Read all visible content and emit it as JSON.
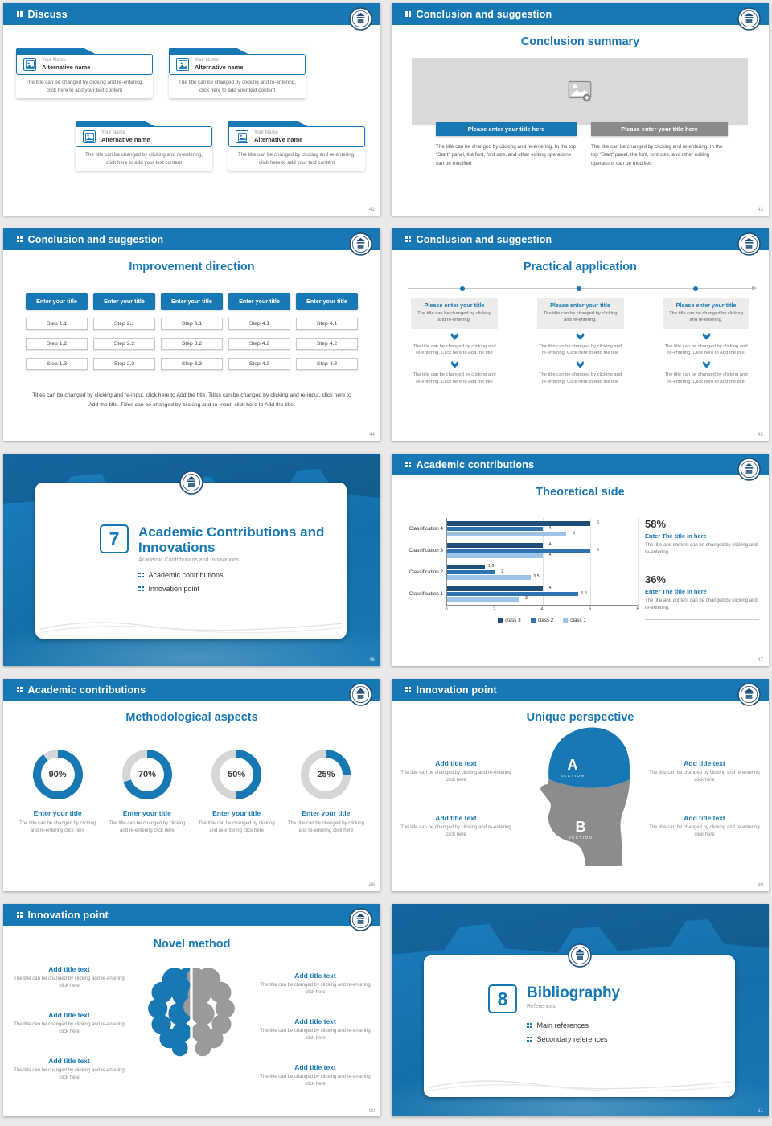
{
  "theme": {
    "accent": "#1878B4",
    "navy": "#1F4E79",
    "gray_button": "#8A8A8A",
    "donut_rest": "#D6D6D6"
  },
  "slide42": {
    "header": "Discuss",
    "page": "42",
    "cards": [
      {
        "name": "Your Name",
        "alt": "Alternative name",
        "body": "The title can be changed by clicking and re-entering, click here to add your text content"
      },
      {
        "name": "Your Name",
        "alt": "Alternative name",
        "body": "The title can be changed by clicking and re-entering, click here to add your text content"
      },
      {
        "name": "Your Name",
        "alt": "Alternative name",
        "body": "The title can be changed by clicking and re-entering, click here to add your text content"
      },
      {
        "name": "Your Name",
        "alt": "Alternative name",
        "body": "The title can be changed by clicking and re-entering, click here to add your text content"
      }
    ]
  },
  "slide43": {
    "header": "Conclusion and suggestion",
    "page": "43",
    "title": "Conclusion summary",
    "left_button": "Please enter your title here",
    "right_button": "Please enter your title here",
    "left_body": "The title can be changed by clicking and re-entering. In the top \"Start\" panel, the font, font size, and other editing operations can be modified",
    "right_body": "The title can be changed by clicking and re-entering. In the top \"Start\" panel, the font, font size, and other editing operations can be modified"
  },
  "slide44": {
    "header": "Conclusion and suggestion",
    "page": "44",
    "title": "Improvement direction",
    "columns": [
      {
        "button": "Enter your title",
        "steps": [
          "Step 1.1",
          "Step 1.2",
          "Step 1.3"
        ]
      },
      {
        "button": "Enter your title",
        "steps": [
          "Step 2.1",
          "Step 2.2",
          "Step 2.3"
        ]
      },
      {
        "button": "Enter your title",
        "steps": [
          "Step 3.1",
          "Step 3.2",
          "Step 3.3"
        ]
      },
      {
        "button": "Enter your title",
        "steps": [
          "Step 4.1",
          "Step 4.2",
          "Step 4.3"
        ]
      },
      {
        "button": "Enter your title",
        "steps": [
          "Step 4.1",
          "Step 4.2",
          "Step 4.3"
        ]
      }
    ],
    "footer": "Titles can be changed by clicking and re-input, click here to Add the title. Titles can be changed by clicking and re-input, click here to Add the title. Titles can be changed by clicking and re-input, click here to Add the title."
  },
  "slide45": {
    "header": "Conclusion and suggestion",
    "page": "45",
    "title": "Practical application",
    "columns": [
      {
        "box_title": "Please enter your title",
        "box_body": "The title can be changed by clicking and re-entering.",
        "step1": "The title can be changed by clicking and re-entering. Click here to Add the title",
        "step2": "The title can be changed by clicking and re-entering. Click here to Add the title"
      },
      {
        "box_title": "Please enter your title",
        "box_body": "The title can be changed by clicking and re-entering.",
        "step1": "The title can be changed by clicking and re-entering. Click here to Add the title",
        "step2": "The title can be changed by clicking and re-entering. Click here to Add the title"
      },
      {
        "box_title": "Please enter your title",
        "box_body": "The title can be changed by clicking and re-entering.",
        "step1": "The title can be changed by clicking and re-entering. Click here to Add the title",
        "step2": "The title can be changed by clicking and re-entering. Click here to Add the title"
      }
    ]
  },
  "slide46": {
    "page": "46",
    "number": "7",
    "title": "Academic Contributions and Innovations",
    "subtitle": "Academic Contributions and Innovations",
    "bullets": [
      "Academic contributions",
      "Innovation point"
    ]
  },
  "slide47": {
    "header": "Academic contributions",
    "page": "47",
    "title": "Theoretical side",
    "stats": [
      {
        "pct": "58%",
        "title": "Enter The title in here",
        "body": "The title and content can be changed by clicking and re-entering."
      },
      {
        "pct": "36%",
        "title": "Enter The title in here",
        "body": "The title and content can be changed by clicking and re-entering."
      }
    ]
  },
  "chart_data": {
    "type": "bar",
    "orientation": "horizontal",
    "title": "Theoretical side",
    "categories": [
      "Classification 1",
      "Classification 2",
      "Classification 3",
      "Classification 4"
    ],
    "series": [
      {
        "name": "class 1",
        "color": "#9DC3E6",
        "values": [
          3,
          3.5,
          4,
          5
        ]
      },
      {
        "name": "class 2",
        "color": "#2E74B5",
        "values": [
          5.5,
          2,
          6,
          4
        ]
      },
      {
        "name": "class 3",
        "color": "#1F4E79",
        "values": [
          4,
          1.6,
          4,
          6
        ]
      }
    ],
    "xlim": [
      0,
      8
    ],
    "xticks": [
      0,
      2,
      4,
      6,
      8
    ],
    "legend_order": [
      "class 3",
      "class 2",
      "class 1"
    ],
    "legend_position": "bottom",
    "grid": true
  },
  "slide48": {
    "header": "Academic contributions",
    "page": "48",
    "title": "Methodological aspects",
    "donuts": [
      {
        "pct": "90%",
        "title": "Enter your title",
        "body": "The title can be changed by clicking and re-entering click here"
      },
      {
        "pct": "70%",
        "title": "Enter your title",
        "body": "The title can be changed by clicking and re-entering click here"
      },
      {
        "pct": "50%",
        "title": "Enter your title",
        "body": "The title can be changed by clicking and re-entering click here"
      },
      {
        "pct": "25%",
        "title": "Enter your title",
        "body": "The title can be changed by clicking and re-entering click here"
      }
    ]
  },
  "slide49": {
    "header": "Innovation point",
    "page": "49",
    "title": "Unique perspective",
    "section_a": "A",
    "section_a_sub": "SECTION",
    "section_b": "B",
    "section_b_sub": "SECTION",
    "left_blocks": [
      {
        "title": "Add title text",
        "body": "The title can be changed by clicking and re-entering click here"
      },
      {
        "title": "Add title text",
        "body": "The title can be changed by clicking and re-entering click here"
      }
    ],
    "right_blocks": [
      {
        "title": "Add title text",
        "body": "The title can be changed by clicking and re-entering click here"
      },
      {
        "title": "Add title text",
        "body": "The title can be changed by clicking and re-entering click here"
      }
    ]
  },
  "slide50": {
    "header": "Innovation point",
    "page": "50",
    "title": "Novel method",
    "left_blocks": [
      {
        "title": "Add title text",
        "body": "The title can be changed by clicking and re-entering click here"
      },
      {
        "title": "Add title text",
        "body": "The title can be changed by clicking and re-entering click here"
      },
      {
        "title": "Add title text",
        "body": "The title can be changed by clicking and re-entering click here"
      }
    ],
    "right_blocks": [
      {
        "title": "Add title text",
        "body": "The title can be changed by clicking and re-entering click here"
      },
      {
        "title": "Add title text",
        "body": "The title can be changed by clicking and re-entering click here"
      },
      {
        "title": "Add title text",
        "body": "The title can be changed by clicking and re-entering click here"
      }
    ]
  },
  "slide51": {
    "page": "51",
    "number": "8",
    "title": "Bibliography",
    "subtitle": "References",
    "bullets": [
      "Main references",
      "Secondary references"
    ]
  }
}
